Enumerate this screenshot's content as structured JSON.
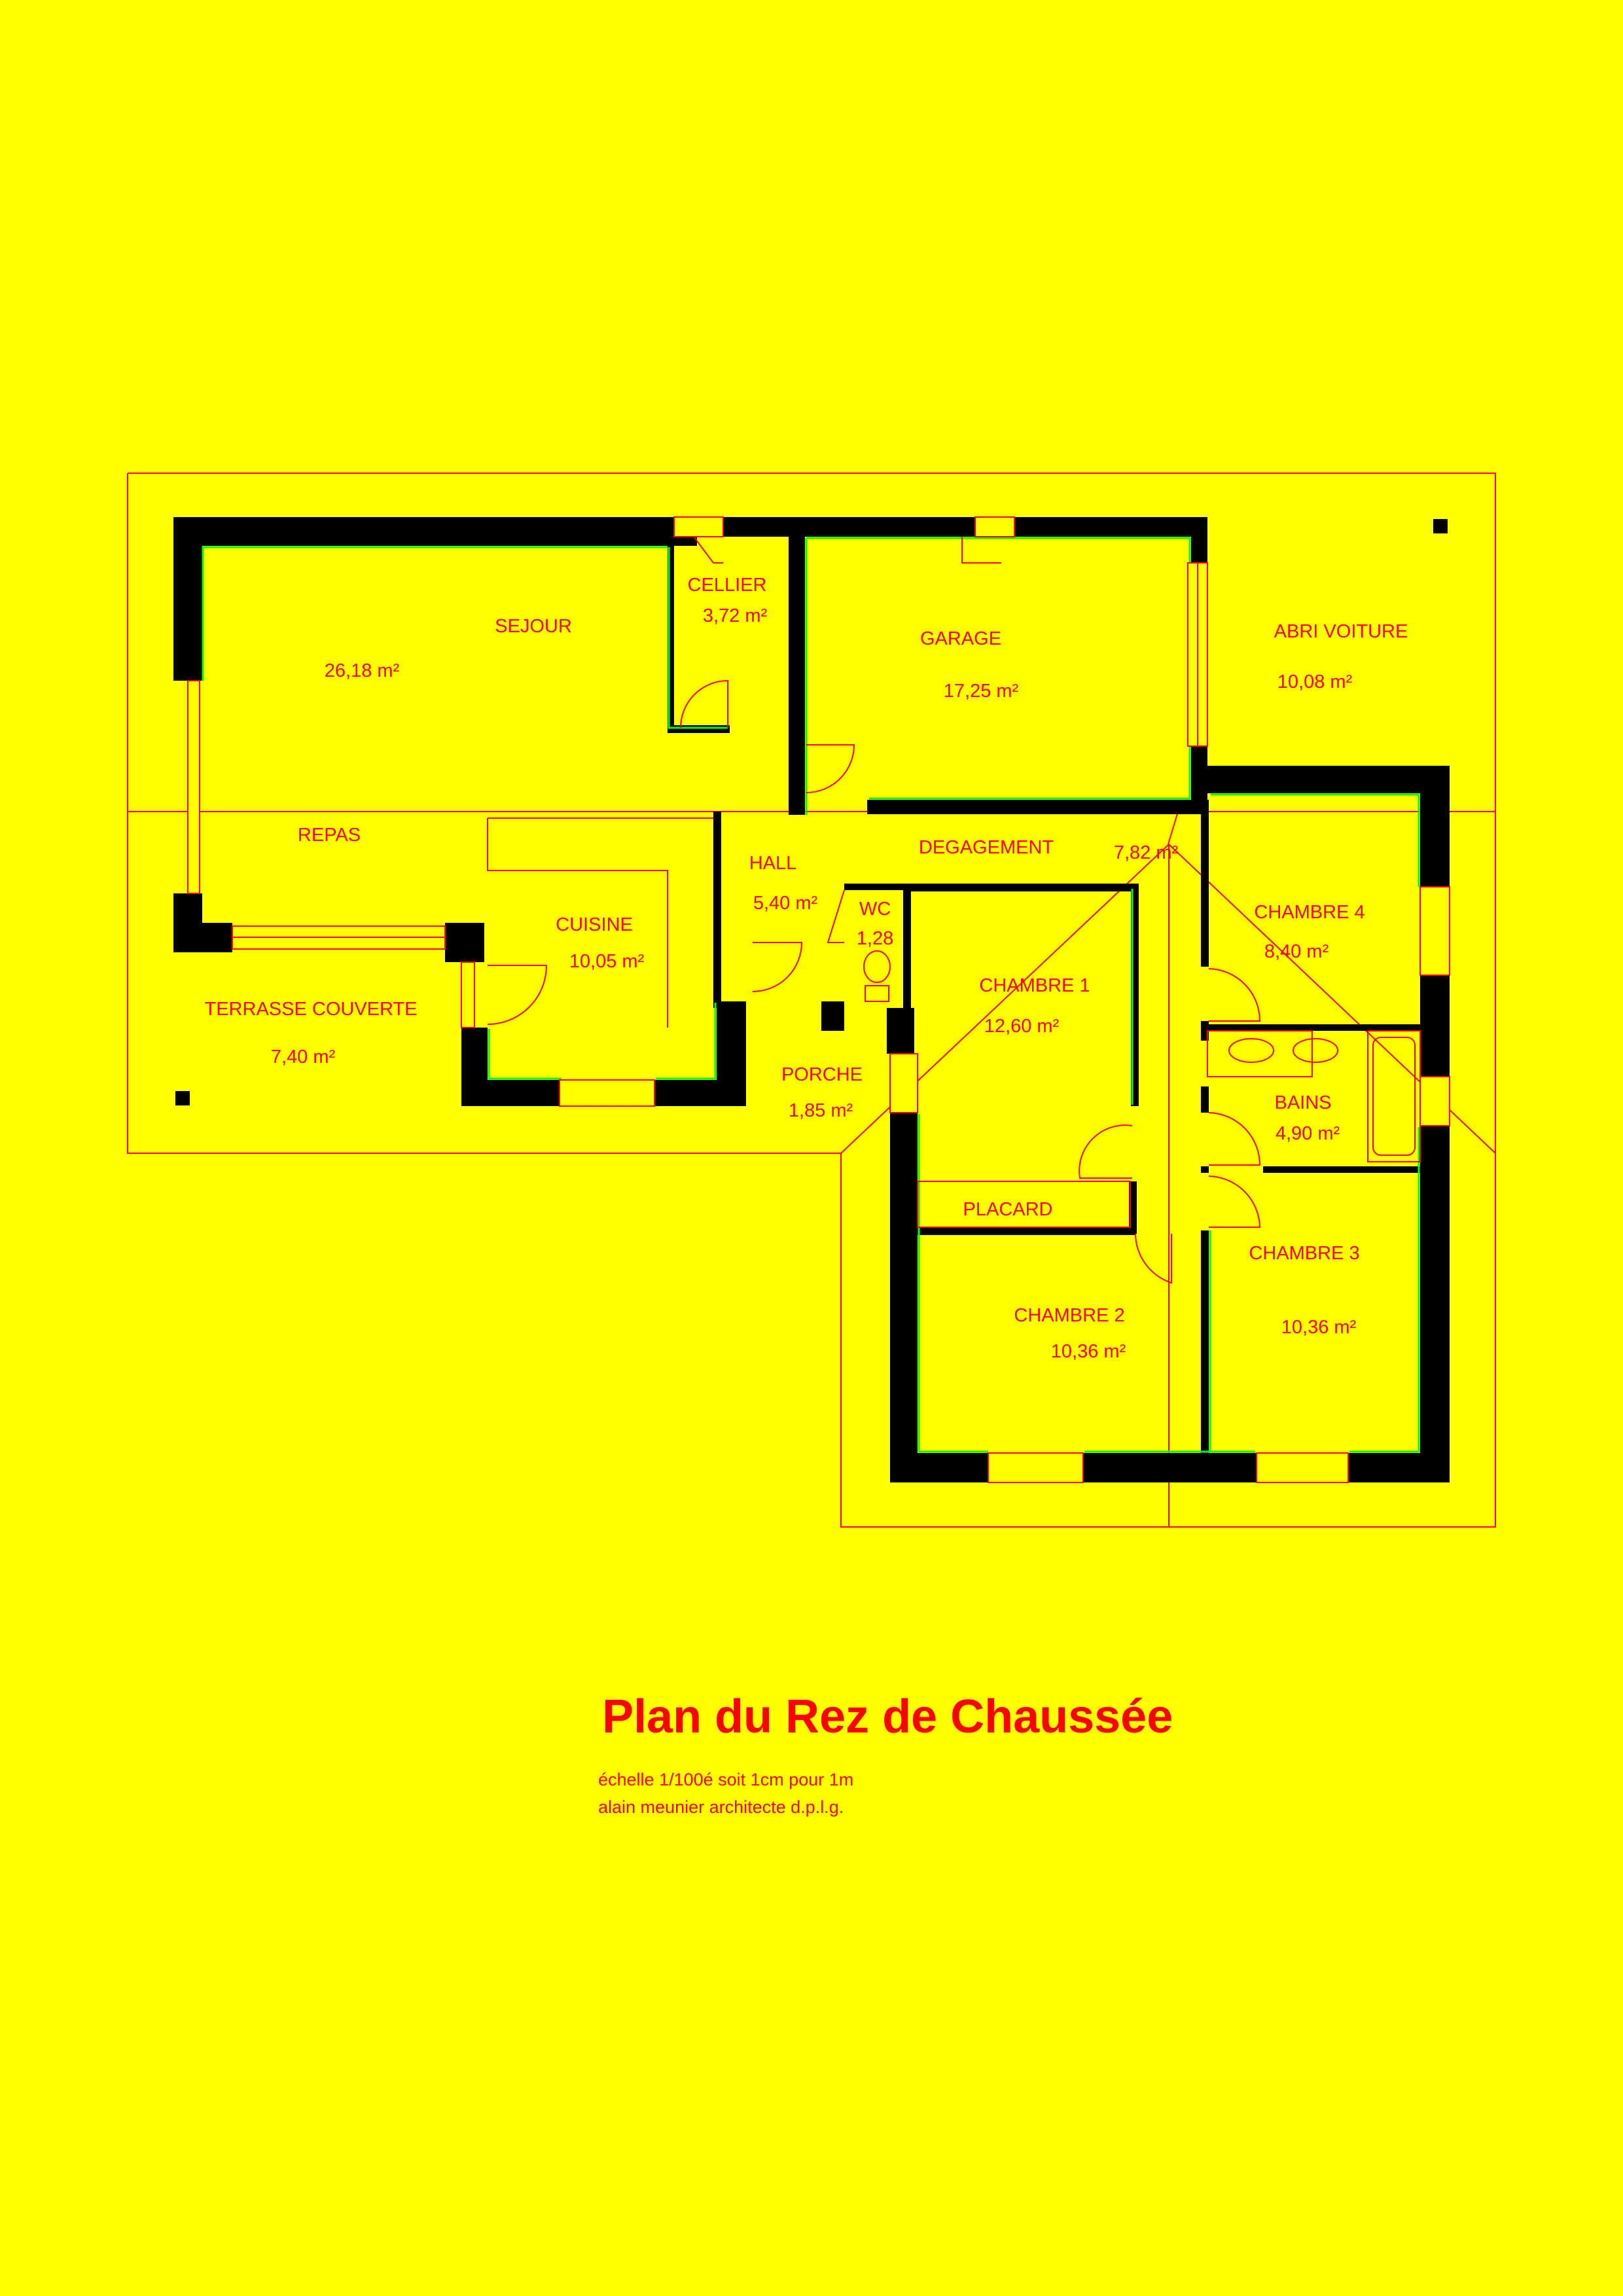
{
  "plan": {
    "rooms": [
      {
        "key": "sejour",
        "name": "SEJOUR",
        "area": "26,18 m²"
      },
      {
        "key": "repas",
        "name": "REPAS"
      },
      {
        "key": "cellier",
        "name": "CELLIER",
        "area": "3,72 m²"
      },
      {
        "key": "garage",
        "name": "GARAGE",
        "area": "17,25 m²"
      },
      {
        "key": "abri",
        "name": "ABRI VOITURE",
        "area": "10,08 m²"
      },
      {
        "key": "hall",
        "name": "HALL",
        "area": "5,40 m²"
      },
      {
        "key": "degagement",
        "name": "DEGAGEMENT",
        "area": "7,82 m²"
      },
      {
        "key": "wc",
        "name": "WC",
        "area": "1,28"
      },
      {
        "key": "cuisine",
        "name": "CUISINE",
        "area": "10,05 m²"
      },
      {
        "key": "terrasse",
        "name": "TERRASSE COUVERTE",
        "area": "7,40 m²"
      },
      {
        "key": "porche",
        "name": "PORCHE",
        "area": "1,85 m²"
      },
      {
        "key": "chambre1",
        "name": "CHAMBRE 1",
        "area": "12,60 m²"
      },
      {
        "key": "chambre4",
        "name": "CHAMBRE 4",
        "area": "8,40 m²"
      },
      {
        "key": "bains",
        "name": "BAINS",
        "area": "4,90 m²"
      },
      {
        "key": "placard",
        "name": "PLACARD"
      },
      {
        "key": "chambre2",
        "name": "CHAMBRE 2",
        "area": "10,36 m²"
      },
      {
        "key": "chambre3",
        "name": "CHAMBRE 3",
        "area": "10,36 m²"
      }
    ]
  },
  "title": "Plan du Rez de Chaussée",
  "scale_note": "échelle 1/100é soit 1cm pour 1m",
  "author_note": "alain meunier architecte d.p.l.g.",
  "colors": {
    "background": "#ffff00",
    "lines": "#ff0000",
    "walls": "#000000",
    "wall_edge": "#00ff00"
  }
}
